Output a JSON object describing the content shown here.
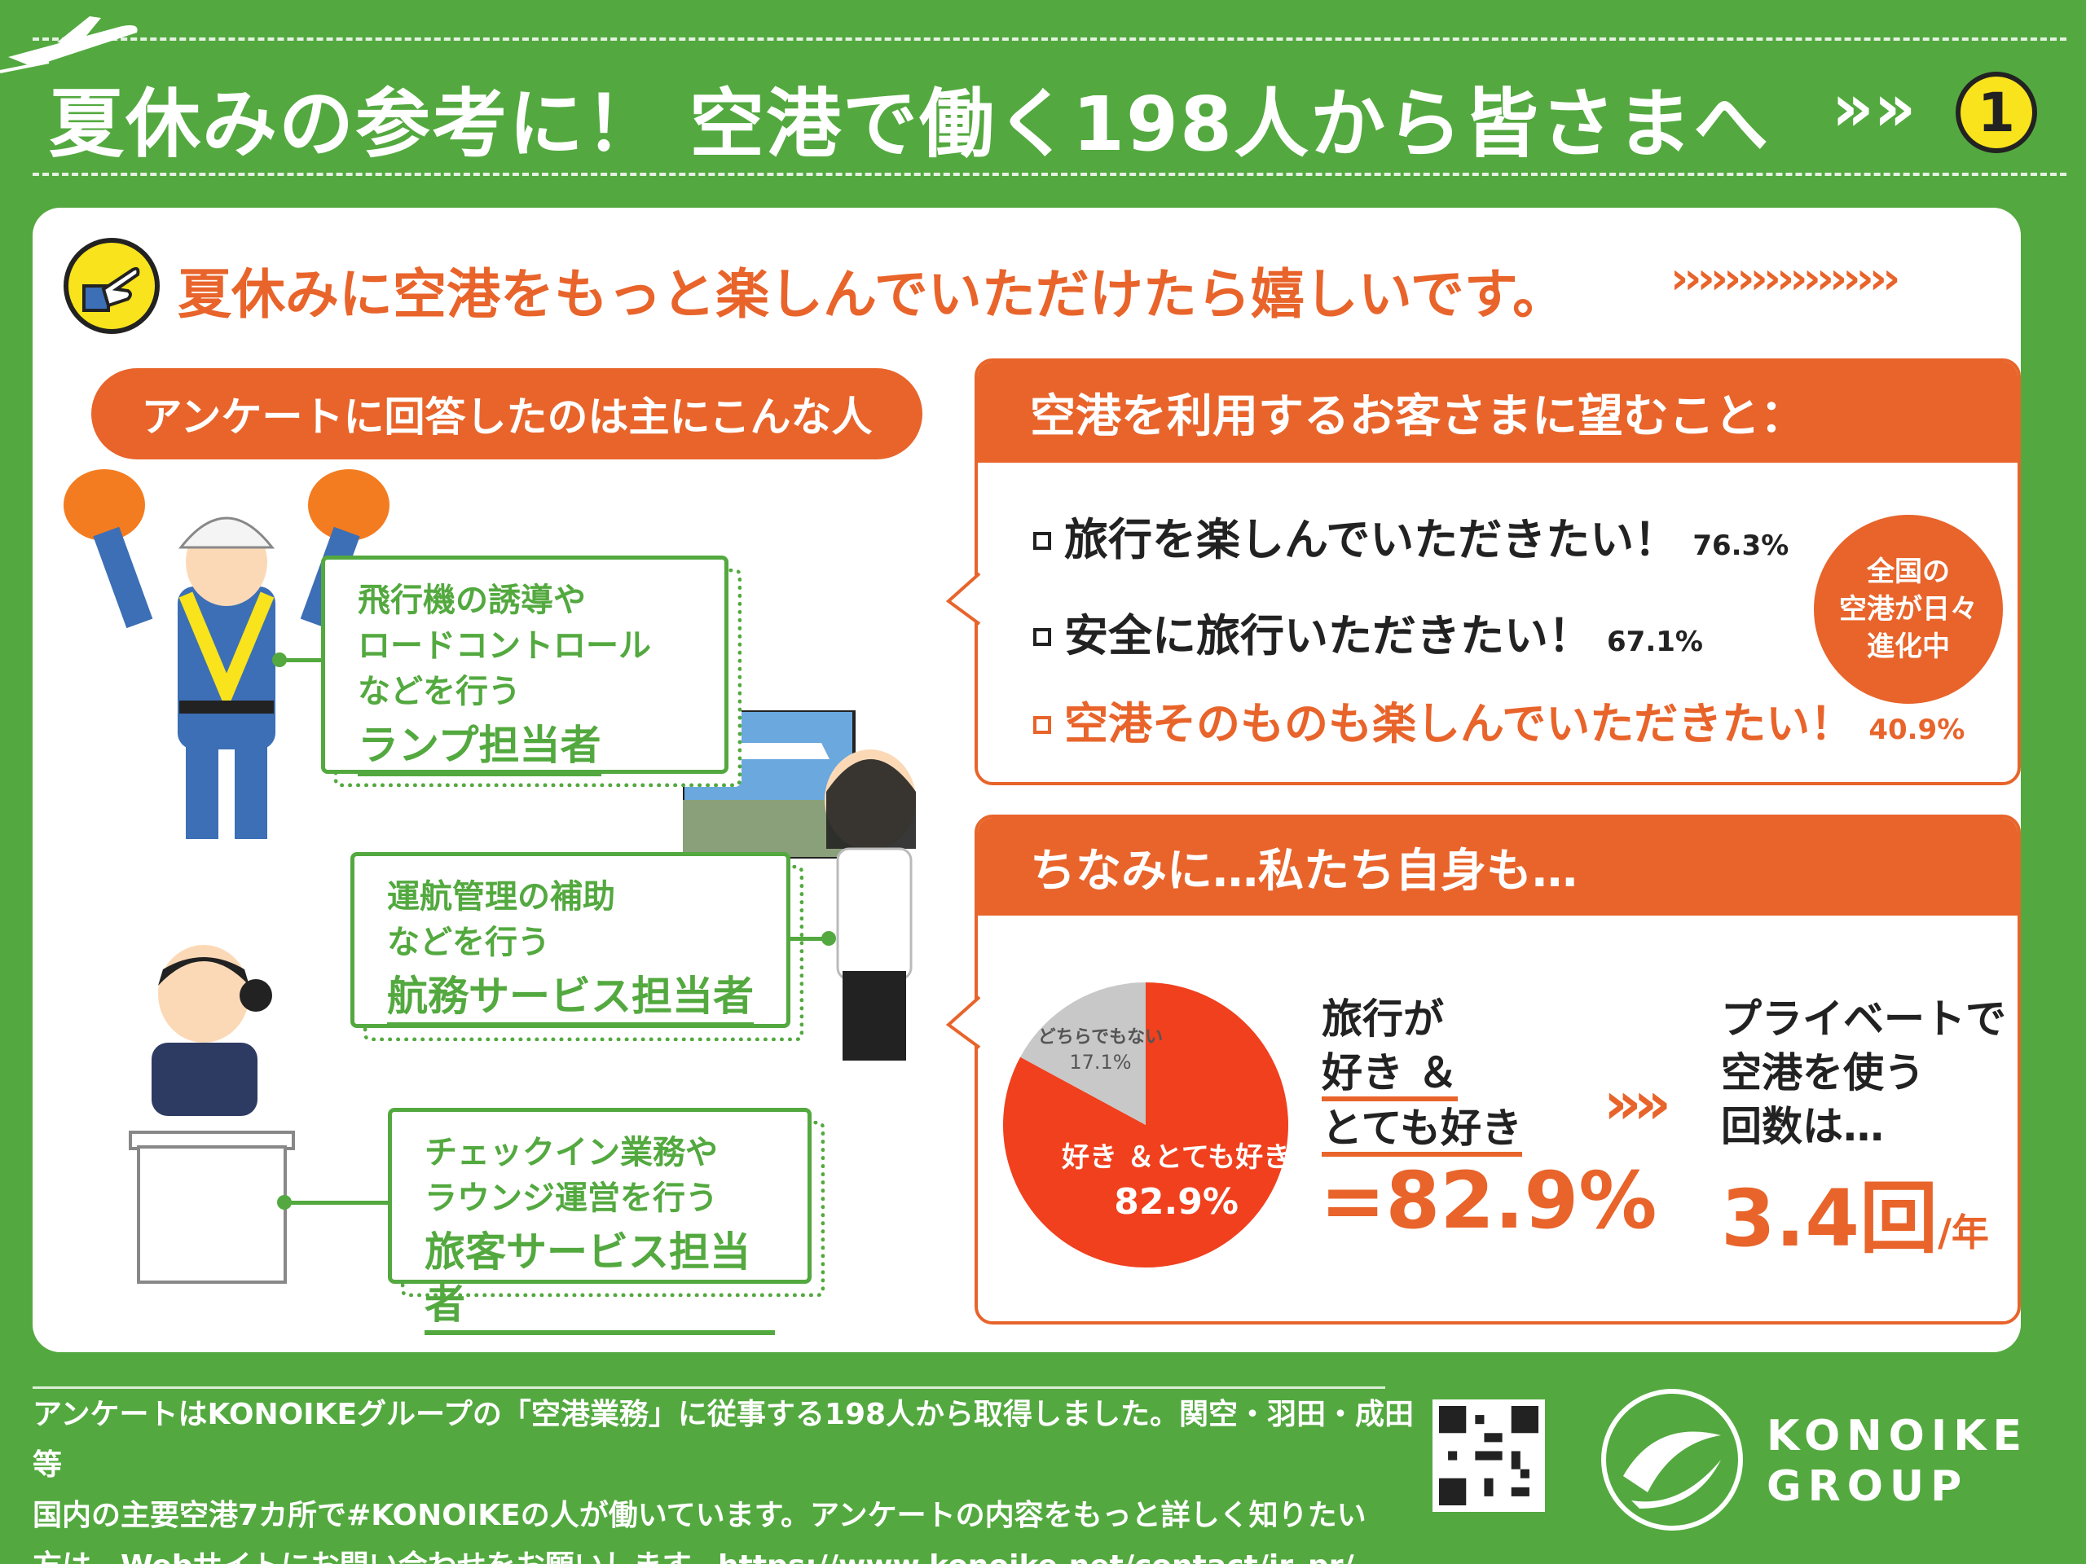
{
  "header": {
    "title": "夏休みの参考に！ 空港で働く198人から皆さまへ",
    "chevrons": "»»",
    "number": "1"
  },
  "headline": {
    "text": "夏休みに空港をもっと楽しんでいただけたら嬉しいです。",
    "chevrons": "›››››››››››››››››",
    "icon": "pointing-hand-icon"
  },
  "respondents": {
    "heading": "アンケートに回答したのは主にこんな人",
    "roles": [
      {
        "desc1": "飛行機の誘導や",
        "desc2": "ロードコントロール",
        "desc3": "などを行う",
        "name": "ランプ担当者"
      },
      {
        "desc1": "運航管理の補助",
        "desc2": "などを行う",
        "name": "航務サービス担当者"
      },
      {
        "desc1": "チェックイン業務や",
        "desc2": "ラウンジ運営を行う",
        "name": "旅客サービス担当者"
      }
    ]
  },
  "wishes": {
    "heading": "空港を利用するお客さまに望むこと：",
    "items": [
      {
        "text": "旅行を楽しんでいただきたい！",
        "pct": "76.3%"
      },
      {
        "text": "安全に旅行いただきたい！",
        "pct": "67.1%"
      },
      {
        "text": "空港そのものも楽しんでいただきたい！",
        "pct": "40.9%"
      }
    ],
    "bubble": {
      "line1": "全国の",
      "line2": "空港が日々",
      "line3": "進化中"
    }
  },
  "ourselves": {
    "heading": "ちなみに…私たち自身も…",
    "left_label": {
      "l1": "旅行が",
      "l2": "好き ＆",
      "l3": "とても好き"
    },
    "left_value": "=82.9%",
    "arrow": "»»",
    "right_label": {
      "l1": "プライベートで",
      "l2": "空港を使う",
      "l3": "回数は…"
    },
    "right_value": "3.4回",
    "right_unit": "/年"
  },
  "chart_data": {
    "type": "pie",
    "slices": [
      {
        "label": "好き ＆とても好き",
        "value": 82.9,
        "display": "82.9%",
        "color": "#f0401e"
      },
      {
        "label": "どちらでもない",
        "value": 17.1,
        "display": "17.1%",
        "color": "#c8c8c8"
      }
    ]
  },
  "footer": {
    "line1": "アンケートはKONOIKEグループの「空港業務」に従事する198人から取得しました。関空・羽田・成田等",
    "line2": "国内の主要空港7カ所で#KONOIKEの人が働いています。アンケートの内容をもっと詳しく知りたい",
    "line3": "方は、Webサイトにお問い合わせをお願いします。https://www.konoike.net/contact/ir_pr/"
  },
  "brand": {
    "line1": "KONOIKE",
    "line2": "GROUP"
  },
  "colors": {
    "green": "#53a93f",
    "orange": "#e8642b",
    "yellow": "#f8e31c",
    "pie_main": "#f0401e",
    "pie_other": "#c8c8c8"
  }
}
